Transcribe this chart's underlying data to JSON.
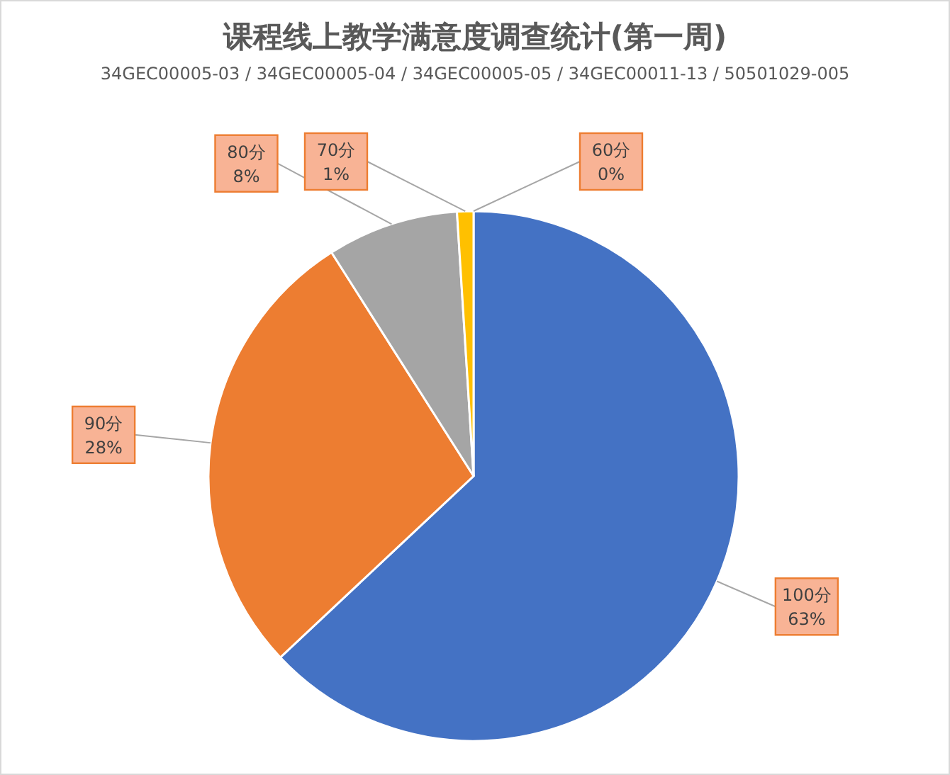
{
  "chart_data": {
    "type": "pie",
    "title": "课程线上教学满意度调查统计(第一周)",
    "subtitle": "34GEC00005-03 / 34GEC00005-04 / 34GEC00005-05 / 34GEC00011-13 / 50501029-005",
    "categories": [
      "100分",
      "90分",
      "80分",
      "70分",
      "60分"
    ],
    "values": [
      63,
      28,
      8,
      1,
      0
    ],
    "colors": [
      "#4472c4",
      "#ed7d31",
      "#a5a5a5",
      "#ffc000",
      "#5b9bd5"
    ],
    "value_labels": [
      "63%",
      "28%",
      "8%",
      "1%",
      "0%"
    ],
    "legend": false
  }
}
